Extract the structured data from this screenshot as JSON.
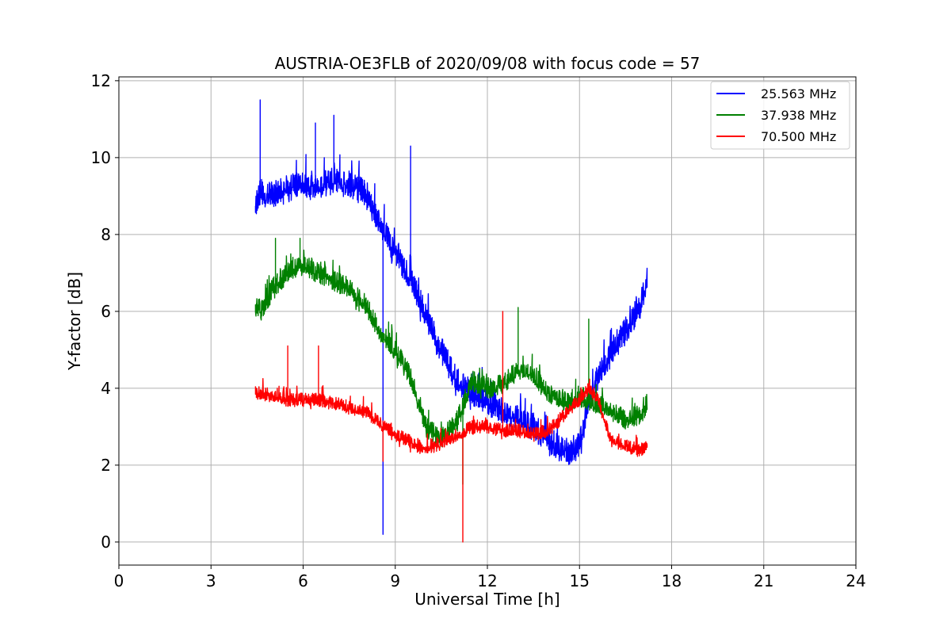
{
  "chart_data": {
    "type": "line",
    "title": "AUSTRIA-OE3FLB of 2020/09/08 with focus code = 57",
    "xlabel": "Universal Time [h]",
    "ylabel": "Y-factor [dB]",
    "xlim": [
      0,
      24
    ],
    "ylim": [
      -0.6,
      12.1
    ],
    "x_ticks": [
      0,
      3,
      6,
      9,
      12,
      15,
      18,
      21,
      24
    ],
    "y_ticks": [
      0,
      2,
      4,
      6,
      8,
      10,
      12
    ],
    "grid": true,
    "legend_position": "top-right",
    "series": [
      {
        "name": "25.563 MHz",
        "color": "#0000ff",
        "noise": 0.6,
        "spikes": [
          [
            4.6,
            11.5
          ],
          [
            6.4,
            10.9
          ],
          [
            7.0,
            11.1
          ],
          [
            8.6,
            0.2
          ],
          [
            9.5,
            10.3
          ]
        ],
        "x": [
          4.45,
          4.6,
          5.0,
          5.5,
          6.0,
          6.5,
          7.0,
          7.5,
          8.0,
          8.5,
          9.0,
          9.5,
          10.0,
          10.5,
          11.0,
          11.5,
          12.0,
          12.5,
          13.0,
          13.5,
          14.0,
          14.5,
          14.8,
          15.0,
          15.3,
          15.6,
          16.0,
          16.5,
          17.0,
          17.2
        ],
        "y": [
          8.8,
          9.1,
          9.0,
          9.2,
          9.3,
          9.3,
          9.4,
          9.3,
          9.1,
          8.3,
          7.6,
          6.8,
          5.9,
          5.0,
          4.2,
          3.9,
          3.7,
          3.4,
          3.2,
          3.0,
          2.6,
          2.4,
          2.3,
          2.6,
          3.6,
          4.3,
          4.9,
          5.5,
          6.2,
          6.9
        ]
      },
      {
        "name": "37.938 MHz",
        "color": "#008000",
        "noise": 0.45,
        "spikes": [
          [
            5.1,
            7.9
          ],
          [
            5.9,
            7.9
          ],
          [
            11.2,
            1.5
          ],
          [
            13.0,
            6.1
          ],
          [
            15.3,
            5.8
          ]
        ],
        "x": [
          4.45,
          4.8,
          5.0,
          5.5,
          6.0,
          6.5,
          7.0,
          7.5,
          8.0,
          8.5,
          9.0,
          9.5,
          10.0,
          10.5,
          11.0,
          11.5,
          12.0,
          12.5,
          13.0,
          13.5,
          14.0,
          14.5,
          15.0,
          15.5,
          16.0,
          16.5,
          17.0,
          17.2
        ],
        "y": [
          6.0,
          6.2,
          6.6,
          7.0,
          7.2,
          7.0,
          6.8,
          6.6,
          6.2,
          5.5,
          5.0,
          4.3,
          3.0,
          2.7,
          3.1,
          4.2,
          4.0,
          4.1,
          4.5,
          4.3,
          3.9,
          3.6,
          3.8,
          3.6,
          3.4,
          3.2,
          3.3,
          3.6
        ]
      },
      {
        "name": "70.500 MHz",
        "color": "#ff0000",
        "noise": 0.3,
        "spikes": [
          [
            5.5,
            5.1
          ],
          [
            6.5,
            5.1
          ],
          [
            8.6,
            2.1
          ],
          [
            11.2,
            0.0
          ],
          [
            12.5,
            6.0
          ]
        ],
        "x": [
          4.45,
          5.0,
          5.5,
          6.0,
          6.5,
          7.0,
          7.5,
          8.0,
          8.5,
          9.0,
          9.5,
          10.0,
          10.5,
          11.0,
          11.5,
          12.0,
          12.5,
          13.0,
          13.5,
          14.0,
          14.5,
          15.0,
          15.3,
          15.6,
          16.0,
          16.5,
          17.0,
          17.2
        ],
        "y": [
          3.9,
          3.8,
          3.7,
          3.7,
          3.7,
          3.6,
          3.5,
          3.4,
          3.1,
          2.8,
          2.6,
          2.4,
          2.6,
          2.8,
          3.0,
          3.0,
          2.9,
          2.9,
          2.8,
          2.9,
          3.3,
          3.7,
          4.0,
          3.7,
          2.7,
          2.5,
          2.4,
          2.5
        ]
      }
    ]
  }
}
